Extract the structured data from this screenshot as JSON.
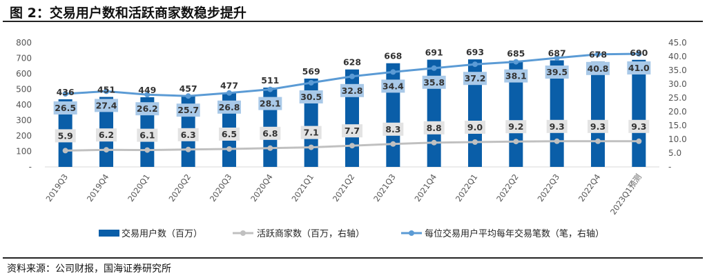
{
  "title": "图 2：交易用户数和活跃商家数稳步提升",
  "source": "资料来源：公司财报，国海证券研究所",
  "colors": {
    "bar": "#0a5ea8",
    "merchant_line": "#c0c0c0",
    "merchant_box": "#e3e3e3",
    "freq_line": "#5b9bd5",
    "freq_box": "#a9c9e8"
  },
  "chart_data": {
    "type": "bar+line",
    "categories": [
      "2019Q3",
      "2019Q4",
      "2020Q1",
      "2020Q2",
      "2020Q3",
      "2020Q4",
      "2021Q1",
      "2021Q2",
      "2021Q3",
      "2021Q4",
      "2022Q1",
      "2022Q2",
      "2022Q3",
      "2022Q4",
      "2023Q1预测"
    ],
    "left_axis": {
      "ylim": [
        0,
        800
      ],
      "ticks": [
        "-",
        "100",
        "200",
        "300",
        "400",
        "500",
        "600",
        "700",
        "800"
      ]
    },
    "right_axis": {
      "ylim": [
        0,
        45
      ],
      "ticks": [
        "-",
        "5.0",
        "10.0",
        "15.0",
        "20.0",
        "25.0",
        "30.0",
        "35.0",
        "40.0",
        "45.0"
      ]
    },
    "series": [
      {
        "name": "交易用户数（百万）",
        "type": "bar",
        "axis": "left",
        "values": [
          436,
          451,
          449,
          457,
          477,
          511,
          569,
          628,
          668,
          691,
          693,
          685,
          687,
          678,
          690
        ]
      },
      {
        "name": "活跃商家数（百万，右轴）",
        "type": "line",
        "axis": "right",
        "values": [
          5.9,
          6.2,
          6.1,
          6.3,
          6.5,
          6.8,
          7.1,
          7.7,
          8.3,
          8.8,
          9.0,
          9.2,
          9.3,
          9.3,
          9.3
        ]
      },
      {
        "name": "每位交易用户平均每年交易笔数（笔，右轴）",
        "type": "line",
        "axis": "right",
        "values": [
          26.5,
          27.4,
          26.2,
          25.7,
          26.8,
          28.1,
          30.5,
          32.8,
          34.4,
          35.8,
          37.2,
          38.1,
          39.5,
          40.8,
          41.0
        ]
      }
    ],
    "legend_position": "bottom"
  }
}
